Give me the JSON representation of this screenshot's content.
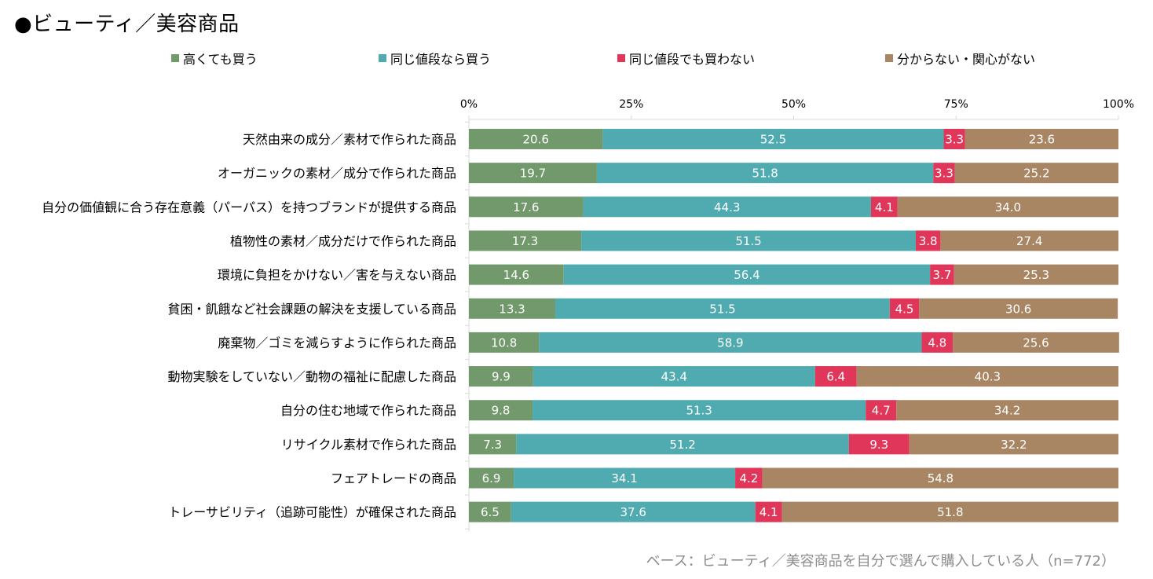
{
  "title": "●ビューティ／美容商品",
  "footnote": "ベース：ビューティ／美容商品を自分で選んで購入している人（n=772）",
  "colors": {
    "high": "#72996b",
    "same": "#4fabb0",
    "not": "#e0365a",
    "unknown": "#a88663",
    "axis": "#d9d9d9",
    "label_text": "#ffffff"
  },
  "chart_data": {
    "type": "bar",
    "orientation": "horizontal",
    "stacked": true,
    "xlim": [
      0,
      100
    ],
    "xticks": [
      "0%",
      "25%",
      "50%",
      "75%",
      "100%"
    ],
    "legend_position": "top",
    "categories": [
      "天然由来の成分／素材で作られた商品",
      "オーガニックの素材／成分で作られた商品",
      "自分の価値観に合う存在意義（パーパス）を持つブランドが提供する商品",
      "植物性の素材／成分だけで作られた商品",
      "環境に負担をかけない／害を与えない商品",
      "貧困・飢餓など社会課題の解決を支援している商品",
      "廃棄物／ゴミを減らすように作られた商品",
      "動物実験をしていない／動物の福祉に配慮した商品",
      "自分の住む地域で作られた商品",
      "リサイクル素材で作られた商品",
      "フェアトレードの商品",
      "トレーサビリティ（追跡可能性）が確保された商品"
    ],
    "series": [
      {
        "name": "高くても買う",
        "color": "#72996b",
        "values": [
          20.6,
          19.7,
          17.6,
          17.3,
          14.6,
          13.3,
          10.8,
          9.9,
          9.8,
          7.3,
          6.9,
          6.5
        ]
      },
      {
        "name": "同じ値段なら買う",
        "color": "#4fabb0",
        "values": [
          52.5,
          51.8,
          44.3,
          51.5,
          56.4,
          51.5,
          58.9,
          43.4,
          51.3,
          51.2,
          34.1,
          37.6
        ]
      },
      {
        "name": "同じ値段でも買わない",
        "color": "#e0365a",
        "values": [
          3.3,
          3.3,
          4.1,
          3.8,
          3.7,
          4.5,
          4.8,
          6.4,
          4.7,
          9.3,
          4.2,
          4.1
        ]
      },
      {
        "name": "分からない・関心がない",
        "color": "#a88663",
        "values": [
          23.6,
          25.2,
          34.0,
          27.4,
          25.3,
          30.6,
          25.6,
          40.3,
          34.2,
          32.2,
          54.8,
          51.8
        ]
      }
    ]
  }
}
